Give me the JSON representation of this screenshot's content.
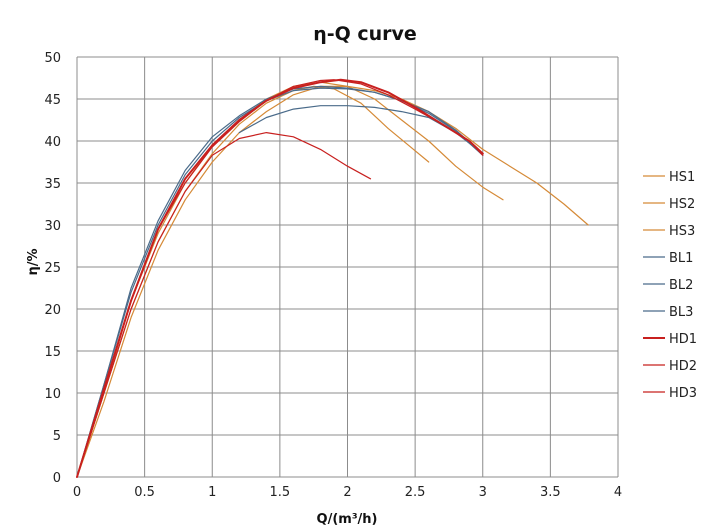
{
  "chart_data": {
    "type": "line",
    "title": "η-Q  curve",
    "xlabel": "Q/(m³/h)",
    "ylabel": "η/%",
    "xlim": [
      0,
      4
    ],
    "ylim": [
      0,
      50
    ],
    "xticks": [
      "0",
      "0.5",
      "1",
      "1.5",
      "2",
      "2.5",
      "3",
      "3.5",
      "4"
    ],
    "yticks": [
      "0",
      "5",
      "10",
      "15",
      "20",
      "25",
      "30",
      "35",
      "40",
      "45",
      "50"
    ],
    "grid": true,
    "legend_position": "right",
    "series": [
      {
        "name": "HS1",
        "color": "#d58a37",
        "width": 1.2,
        "points": [
          [
            0,
            0
          ],
          [
            0.2,
            10
          ],
          [
            0.4,
            20
          ],
          [
            0.6,
            28
          ],
          [
            0.8,
            34
          ],
          [
            1.0,
            38.5
          ],
          [
            1.2,
            42
          ],
          [
            1.4,
            44.5
          ],
          [
            1.6,
            46
          ],
          [
            1.75,
            46.5
          ],
          [
            1.9,
            46.2
          ],
          [
            2.1,
            44.5
          ],
          [
            2.3,
            41.5
          ],
          [
            2.45,
            39.5
          ],
          [
            2.6,
            37.5
          ]
        ]
      },
      {
        "name": "HS2",
        "color": "#d58a37",
        "width": 1.2,
        "points": [
          [
            0,
            0
          ],
          [
            0.2,
            10
          ],
          [
            0.4,
            21
          ],
          [
            0.6,
            29
          ],
          [
            0.8,
            35
          ],
          [
            1.0,
            39.5
          ],
          [
            1.2,
            42.5
          ],
          [
            1.4,
            45
          ],
          [
            1.6,
            46.5
          ],
          [
            1.8,
            47
          ],
          [
            2.0,
            46.5
          ],
          [
            2.2,
            45
          ],
          [
            2.4,
            42.5
          ],
          [
            2.6,
            40
          ],
          [
            2.8,
            37
          ],
          [
            3.0,
            34.5
          ],
          [
            3.15,
            33
          ]
        ]
      },
      {
        "name": "HS3",
        "color": "#d58a37",
        "width": 1.2,
        "points": [
          [
            0,
            0
          ],
          [
            0.2,
            9
          ],
          [
            0.4,
            19
          ],
          [
            0.6,
            27
          ],
          [
            0.8,
            33
          ],
          [
            1.0,
            37.5
          ],
          [
            1.2,
            41
          ],
          [
            1.4,
            43.5
          ],
          [
            1.6,
            45.5
          ],
          [
            1.8,
            46.5
          ],
          [
            2.0,
            46.5
          ],
          [
            2.2,
            46
          ],
          [
            2.4,
            45
          ],
          [
            2.6,
            43.5
          ],
          [
            2.8,
            41.5
          ],
          [
            3.0,
            39
          ],
          [
            3.2,
            37
          ],
          [
            3.4,
            35
          ],
          [
            3.6,
            32.5
          ],
          [
            3.78,
            30
          ]
        ]
      },
      {
        "name": "BL1",
        "color": "#4a6b8a",
        "width": 1.2,
        "points": [
          [
            1.2,
            41
          ],
          [
            1.4,
            42.8
          ],
          [
            1.6,
            43.8
          ],
          [
            1.8,
            44.2
          ],
          [
            2.0,
            44.2
          ],
          [
            2.2,
            44
          ],
          [
            2.4,
            43.5
          ],
          [
            2.6,
            42.8
          ],
          [
            2.8,
            41
          ],
          [
            3.0,
            38.5
          ]
        ]
      },
      {
        "name": "BL2",
        "color": "#4a6b8a",
        "width": 1.2,
        "points": [
          [
            0,
            0
          ],
          [
            0.2,
            11
          ],
          [
            0.4,
            22
          ],
          [
            0.6,
            30
          ],
          [
            0.8,
            36
          ],
          [
            1.0,
            40
          ],
          [
            1.2,
            42.8
          ],
          [
            1.4,
            44.8
          ],
          [
            1.6,
            46
          ],
          [
            1.8,
            46.3
          ],
          [
            2.0,
            46.2
          ],
          [
            2.2,
            45.8
          ],
          [
            2.4,
            44.8
          ],
          [
            2.6,
            43.5
          ],
          [
            2.8,
            41.3
          ],
          [
            3.0,
            38.5
          ]
        ]
      },
      {
        "name": "BL3",
        "color": "#4a6b8a",
        "width": 1.2,
        "points": [
          [
            0,
            0
          ],
          [
            0.2,
            11
          ],
          [
            0.4,
            22.5
          ],
          [
            0.6,
            30.5
          ],
          [
            0.8,
            36.5
          ],
          [
            1.0,
            40.5
          ],
          [
            1.2,
            43
          ],
          [
            1.4,
            45
          ],
          [
            1.6,
            46.2
          ],
          [
            1.8,
            46.5
          ],
          [
            2.0,
            46.3
          ],
          [
            2.2,
            45.8
          ],
          [
            2.4,
            44.8
          ],
          [
            2.6,
            43.3
          ],
          [
            2.8,
            41.2
          ],
          [
            3.0,
            38.3
          ]
        ]
      },
      {
        "name": "HD1",
        "color": "#c8201f",
        "width": 2.0,
        "points": [
          [
            0,
            0
          ],
          [
            0.2,
            10.5
          ],
          [
            0.4,
            21
          ],
          [
            0.6,
            29.5
          ],
          [
            0.8,
            35.5
          ],
          [
            1.0,
            39.5
          ],
          [
            1.2,
            42.5
          ],
          [
            1.4,
            44.8
          ],
          [
            1.6,
            46.3
          ],
          [
            1.8,
            47
          ],
          [
            1.95,
            47.3
          ],
          [
            2.1,
            47
          ],
          [
            2.3,
            45.8
          ],
          [
            2.5,
            44
          ],
          [
            2.7,
            42
          ],
          [
            2.9,
            40
          ],
          [
            3.0,
            38.5
          ]
        ]
      },
      {
        "name": "HD2",
        "color": "#c8201f",
        "width": 1.2,
        "points": [
          [
            0,
            0
          ],
          [
            0.2,
            10.5
          ],
          [
            0.4,
            21
          ],
          [
            0.6,
            29.5
          ],
          [
            0.8,
            35
          ],
          [
            1.0,
            39.3
          ],
          [
            1.2,
            42.3
          ],
          [
            1.4,
            44.8
          ],
          [
            1.6,
            46.5
          ],
          [
            1.8,
            47.2
          ],
          [
            1.9,
            47.3
          ],
          [
            2.1,
            46.8
          ],
          [
            2.3,
            45.5
          ],
          [
            2.5,
            43.8
          ],
          [
            2.7,
            42
          ],
          [
            2.9,
            40
          ],
          [
            3.0,
            38.3
          ]
        ]
      },
      {
        "name": "HD3",
        "color": "#c8201f",
        "width": 1.2,
        "points": [
          [
            0,
            0
          ],
          [
            0.2,
            10
          ],
          [
            0.4,
            20
          ],
          [
            0.6,
            28
          ],
          [
            0.8,
            34
          ],
          [
            1.0,
            38.3
          ],
          [
            1.2,
            40.3
          ],
          [
            1.4,
            41
          ],
          [
            1.6,
            40.5
          ],
          [
            1.8,
            39
          ],
          [
            2.0,
            37
          ],
          [
            2.17,
            35.5
          ]
        ]
      }
    ]
  }
}
